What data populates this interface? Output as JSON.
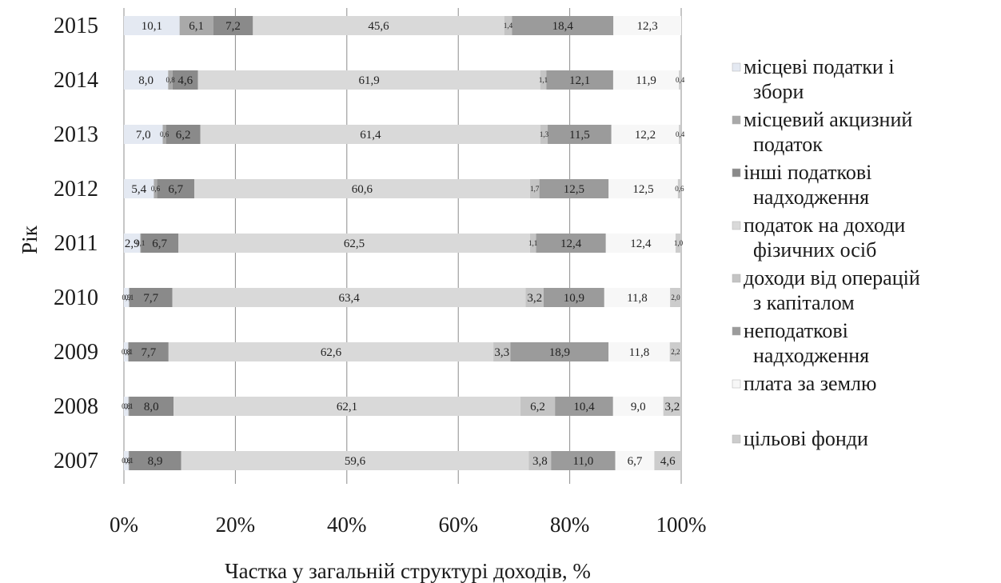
{
  "chart_data": {
    "type": "bar",
    "orientation": "horizontal",
    "stacked": "percent",
    "title": "",
    "xlabel": "Частка у загальній структурі доходів, %",
    "ylabel": "Рік",
    "xlim": [
      0,
      100
    ],
    "x_ticks": [
      "0%",
      "20%",
      "40%",
      "60%",
      "80%",
      "100%"
    ],
    "categories": [
      "2015",
      "2014",
      "2013",
      "2012",
      "2011",
      "2010",
      "2009",
      "2008",
      "2007"
    ],
    "grid": "vertical",
    "legend_position": "right",
    "series": [
      {
        "name": "місцеві податки і збори",
        "color": "#e4e9f2",
        "values": [
          10.1,
          8.0,
          7.0,
          5.4,
          2.9,
          0.9,
          0.8,
          0.8,
          0.8
        ],
        "labels": [
          "10,1",
          "8,0",
          "7,0",
          "5,4",
          "2,9",
          "0,9",
          "0,8",
          "0,8",
          "0,8"
        ]
      },
      {
        "name": "місцевий акцизний податок",
        "color": "#a9a9a9",
        "values": [
          6.1,
          0.8,
          0.6,
          0.6,
          0.1,
          0.1,
          0.1,
          0.1,
          0.1
        ],
        "labels": [
          "6,1",
          "0,8",
          "0,6",
          "0,6",
          "0,1",
          "0,1",
          "0,1",
          "0,1",
          "0,1"
        ]
      },
      {
        "name": "інші податкові надходження",
        "color": "#8a8a8a",
        "values": [
          7.2,
          4.6,
          6.2,
          6.7,
          6.7,
          7.7,
          7.7,
          8.0,
          8.9
        ],
        "labels": [
          "7,2",
          "4,6",
          "6,2",
          "6,7",
          "6,7",
          "7,7",
          "7,7",
          "8,0",
          "8,9"
        ]
      },
      {
        "name": "податок на доходи фізичних осіб",
        "color": "#d9d9d9",
        "values": [
          45.6,
          61.9,
          61.4,
          60.6,
          62.5,
          63.4,
          62.6,
          62.1,
          59.6
        ],
        "labels": [
          "45,6",
          "61,9",
          "61,4",
          "60,6",
          "62,5",
          "63,4",
          "62,6",
          "62,1",
          "59,6"
        ]
      },
      {
        "name": "доходи від операцій з капіталом",
        "color": "#c4c4c4",
        "values": [
          1.4,
          1.1,
          1.3,
          1.7,
          1.1,
          3.2,
          3.3,
          6.2,
          3.8
        ],
        "labels": [
          "1,4",
          "1,1",
          "1,3",
          "1,7",
          "1,1",
          "3,2",
          "3,3",
          "6,2",
          "3,8"
        ]
      },
      {
        "name": "неподаткові надходження",
        "color": "#9b9b9b",
        "values": [
          18.4,
          12.1,
          11.5,
          12.5,
          12.4,
          10.9,
          18.9,
          10.4,
          11.0
        ],
        "labels": [
          "18,4",
          "12,1",
          "11,5",
          "12,5",
          "12,4",
          "10,9",
          "18,9",
          "10,4",
          "11,0"
        ]
      },
      {
        "name": "плата за землю",
        "color": "#f7f7f7",
        "values": [
          12.3,
          11.9,
          12.2,
          12.5,
          12.4,
          11.8,
          11.8,
          9.0,
          6.7
        ],
        "labels": [
          "12,3",
          "11,9",
          "12,2",
          "12,5",
          "12,4",
          "11,8",
          "11,8",
          "9,0",
          "6,7"
        ]
      },
      {
        "name": "цільові фонди",
        "color": "#cccccc",
        "values": [
          0.0,
          0.4,
          0.4,
          0.6,
          1.0,
          2.0,
          2.2,
          3.2,
          4.6
        ],
        "labels": [
          "",
          "0,4",
          "0,4",
          "0,6",
          "1,0",
          "2,0",
          "2,2",
          "3,2",
          "4,6"
        ]
      }
    ]
  }
}
